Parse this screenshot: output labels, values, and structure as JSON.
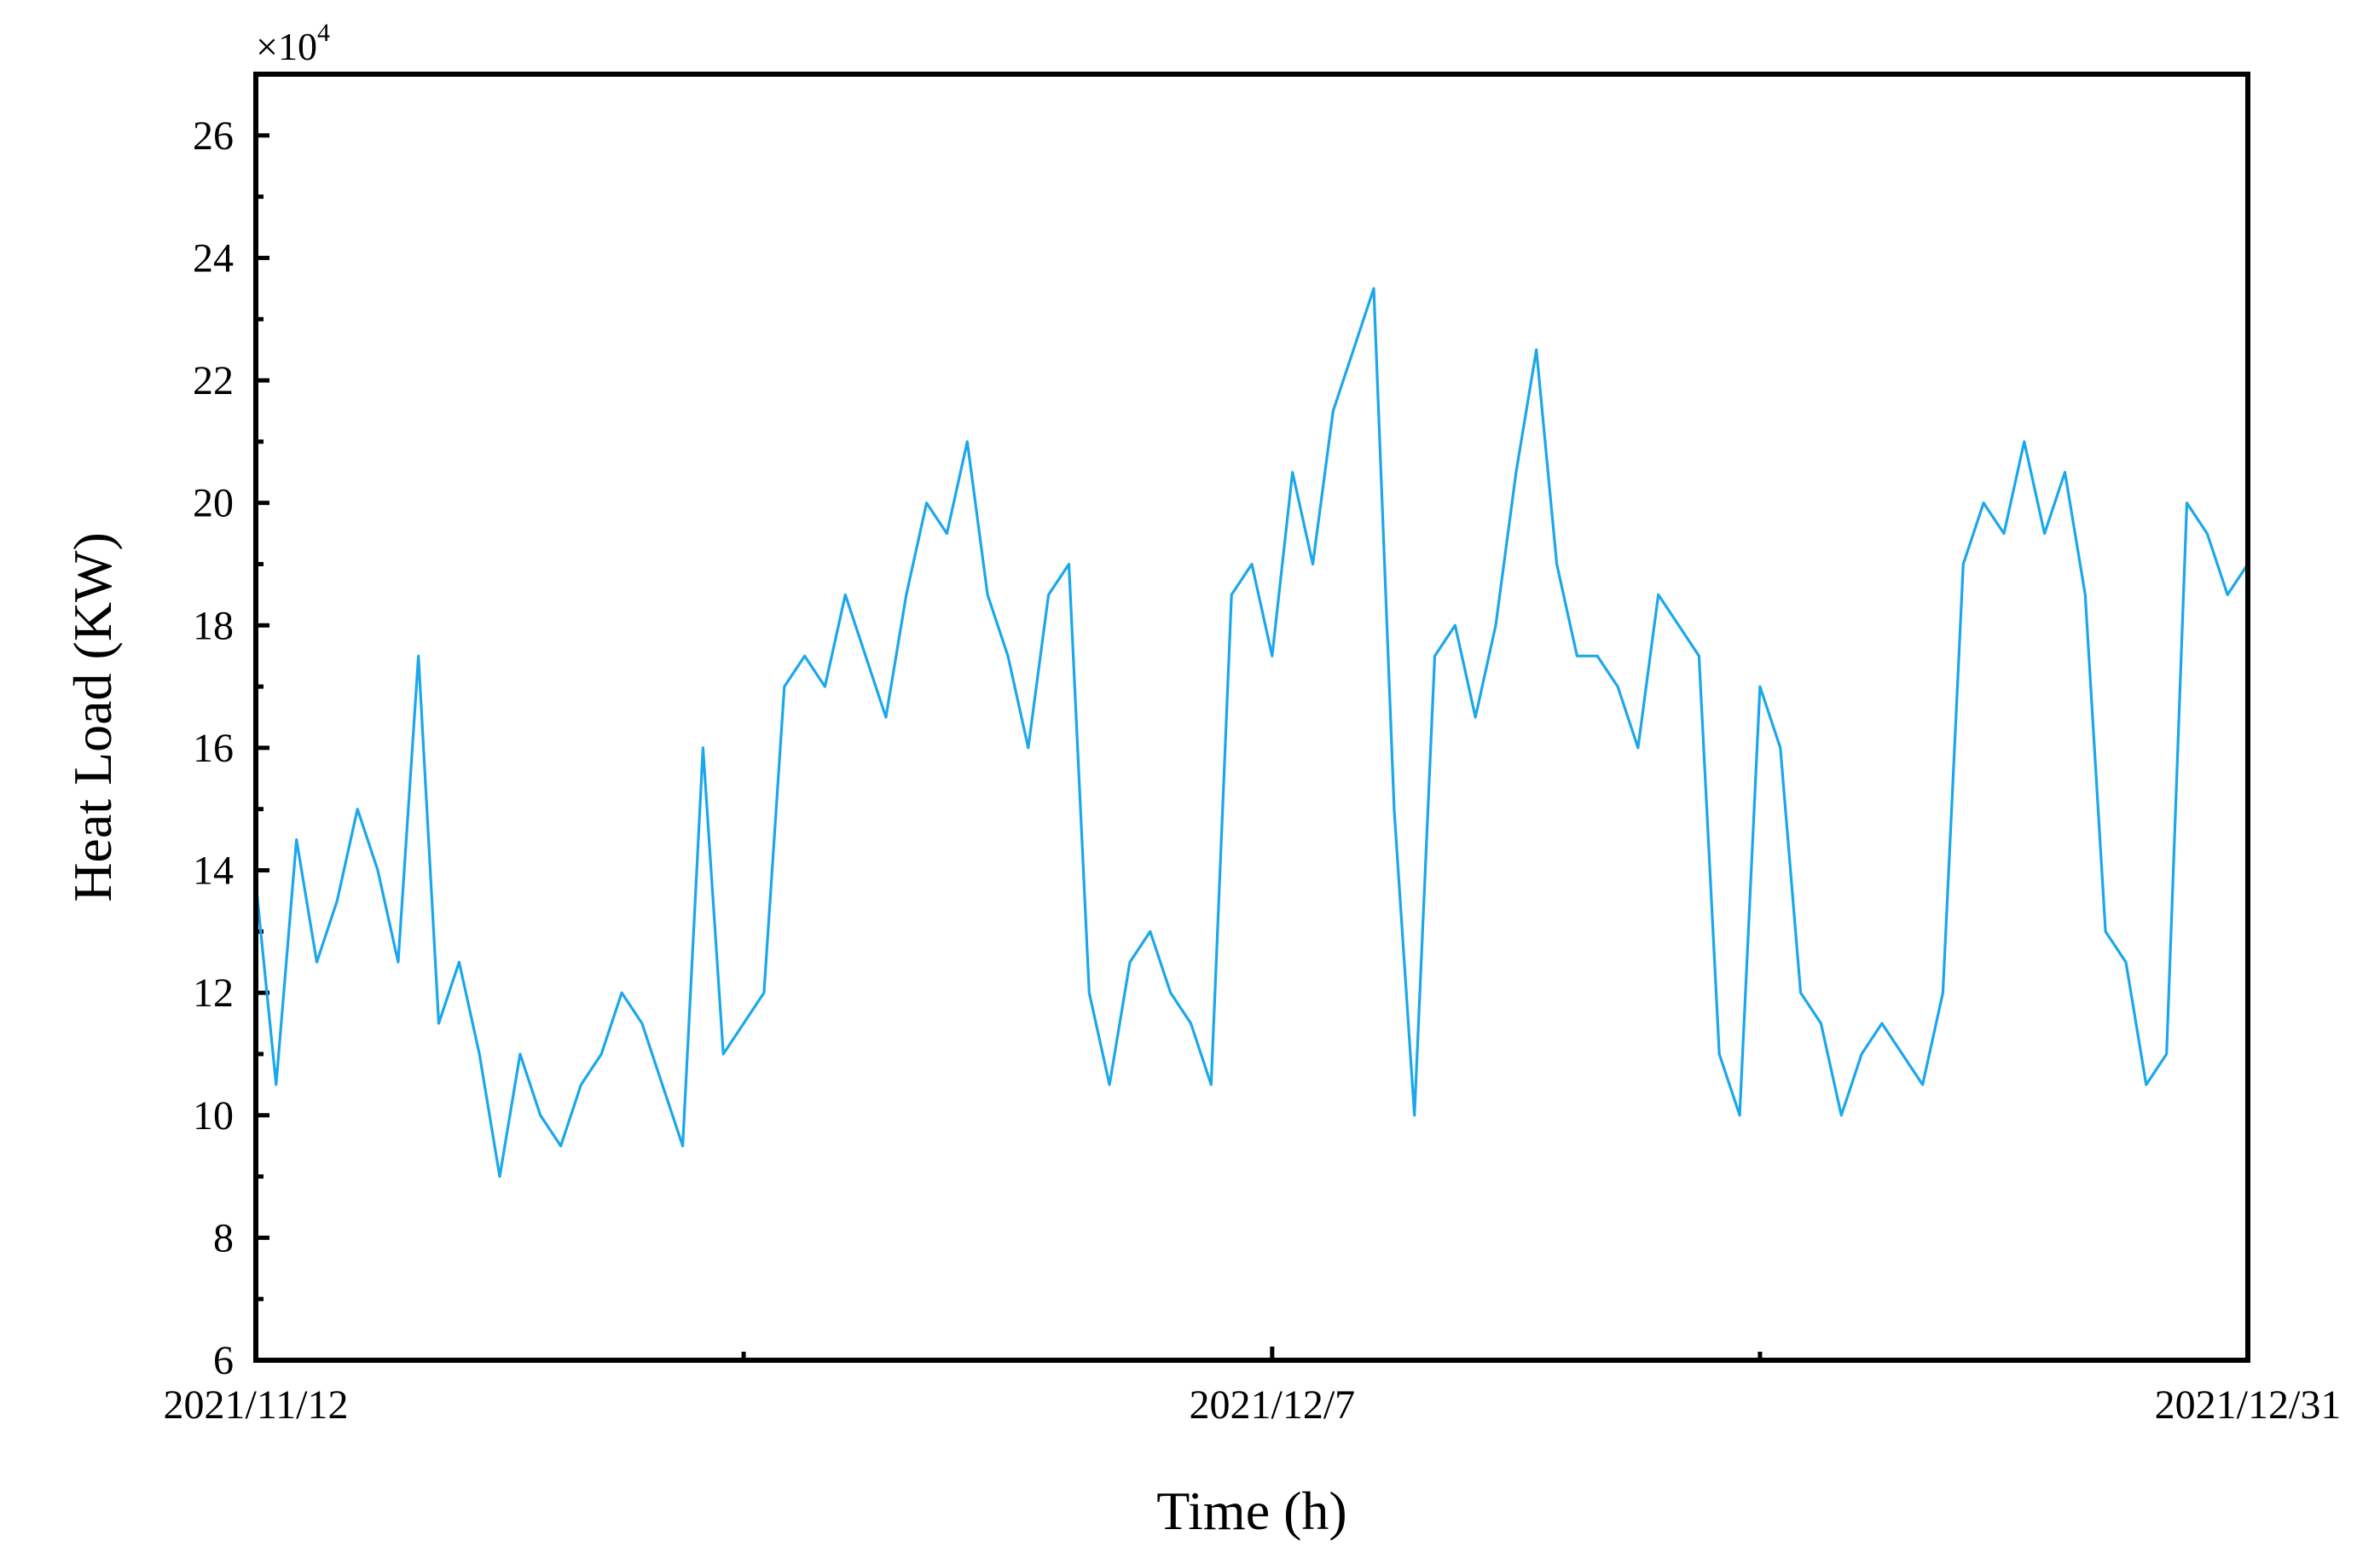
{
  "chart_data": {
    "type": "line",
    "title": "",
    "xlabel": "Time (h)",
    "ylabel": "Heat Load (KW)",
    "y_multiplier_label": "×10",
    "y_multiplier_exponent": "4",
    "y_scale_factor": 10000,
    "xlim": [
      "2021-11-12",
      "2021-12-31"
    ],
    "ylim": [
      6,
      27
    ],
    "y_major_ticks": [
      6,
      8,
      10,
      12,
      14,
      16,
      18,
      20,
      22,
      24,
      26
    ],
    "y_tick_labels": [
      "6",
      "8",
      "10",
      "12",
      "14",
      "16",
      "18",
      "20",
      "22",
      "24",
      "26"
    ],
    "x_labeled_ticks": [
      {
        "date": "2021-11-12",
        "label": "2021/11/12"
      },
      {
        "date": "2021-12-07",
        "label": "2021/12/7"
      },
      {
        "date": "2021-12-31",
        "label": "2021/12/31"
      }
    ],
    "x_minor_ticks": [
      "2021-11-24",
      "2021-12-19"
    ],
    "grid": false,
    "legend": "none",
    "line_color": "#1aa7ec",
    "series": [
      {
        "x": [
          "2021-11-12T00:00",
          "2021-11-12T12:00",
          "2021-11-13T00:00",
          "2021-11-13T12:00",
          "2021-11-14T00:00",
          "2021-11-14T12:00",
          "2021-11-15T00:00",
          "2021-11-15T12:00",
          "2021-11-16T00:00",
          "2021-11-16T12:00",
          "2021-11-17T00:00",
          "2021-11-17T12:00",
          "2021-11-18T00:00",
          "2021-11-18T12:00",
          "2021-11-19T00:00",
          "2021-11-19T12:00",
          "2021-11-20T00:00",
          "2021-11-20T12:00",
          "2021-11-21T00:00",
          "2021-11-21T12:00",
          "2021-11-22T00:00",
          "2021-11-22T12:00",
          "2021-11-23T00:00",
          "2021-11-23T12:00",
          "2021-11-24T00:00",
          "2021-11-24T12:00",
          "2021-11-25T00:00",
          "2021-11-25T12:00",
          "2021-11-26T00:00",
          "2021-11-26T12:00",
          "2021-11-27T00:00",
          "2021-11-27T12:00",
          "2021-11-28T00:00",
          "2021-11-28T12:00",
          "2021-11-29T00:00",
          "2021-11-29T12:00",
          "2021-11-30T00:00",
          "2021-11-30T12:00",
          "2021-12-01T00:00",
          "2021-12-01T12:00",
          "2021-12-02T00:00",
          "2021-12-02T12:00",
          "2021-12-03T00:00",
          "2021-12-03T12:00",
          "2021-12-04T00:00",
          "2021-12-04T12:00",
          "2021-12-05T00:00",
          "2021-12-05T12:00",
          "2021-12-06T00:00",
          "2021-12-06T12:00",
          "2021-12-07T00:00",
          "2021-12-07T12:00",
          "2021-12-08T00:00",
          "2021-12-08T12:00",
          "2021-12-09T00:00",
          "2021-12-09T12:00",
          "2021-12-10T00:00",
          "2021-12-10T12:00",
          "2021-12-11T00:00",
          "2021-12-11T12:00",
          "2021-12-12T00:00",
          "2021-12-12T12:00",
          "2021-12-13T00:00",
          "2021-12-13T12:00",
          "2021-12-14T00:00",
          "2021-12-14T12:00",
          "2021-12-15T00:00",
          "2021-12-15T12:00",
          "2021-12-16T00:00",
          "2021-12-16T12:00",
          "2021-12-17T00:00",
          "2021-12-17T12:00",
          "2021-12-18T00:00",
          "2021-12-18T12:00",
          "2021-12-19T00:00",
          "2021-12-19T12:00",
          "2021-12-20T00:00",
          "2021-12-20T12:00",
          "2021-12-21T00:00",
          "2021-12-21T12:00",
          "2021-12-22T00:00",
          "2021-12-22T12:00",
          "2021-12-23T00:00",
          "2021-12-23T12:00",
          "2021-12-24T00:00",
          "2021-12-24T12:00",
          "2021-12-25T00:00",
          "2021-12-25T12:00",
          "2021-12-26T00:00",
          "2021-12-26T12:00",
          "2021-12-27T00:00",
          "2021-12-27T12:00",
          "2021-12-28T00:00",
          "2021-12-28T12:00",
          "2021-12-29T00:00",
          "2021-12-29T12:00",
          "2021-12-30T00:00",
          "2021-12-30T12:00",
          "2021-12-31T00:00"
        ],
        "values": [
          13.8,
          10.5,
          14.5,
          12.5,
          13.5,
          15.0,
          14.0,
          12.5,
          17.5,
          11.5,
          12.5,
          11.0,
          9.0,
          11.0,
          10.0,
          9.5,
          10.5,
          11.0,
          12.0,
          11.5,
          10.5,
          9.5,
          16.0,
          11.0,
          11.5,
          12.0,
          17.0,
          17.5,
          17.0,
          18.5,
          17.5,
          16.5,
          18.5,
          20.0,
          19.5,
          21.0,
          18.5,
          17.5,
          16.0,
          18.5,
          19.0,
          12.0,
          10.5,
          12.5,
          13.0,
          12.0,
          11.5,
          10.5,
          18.5,
          19.0,
          17.5,
          20.5,
          19.0,
          21.5,
          22.5,
          23.5,
          15.0,
          10.0,
          17.5,
          18.0,
          16.5,
          18.0,
          20.5,
          22.5,
          19.0,
          17.5,
          17.5,
          17.0,
          16.0,
          18.5,
          18.0,
          17.5,
          11.0,
          10.0,
          17.0,
          16.0,
          12.0,
          11.5,
          10.0,
          11.0,
          11.5,
          11.0,
          10.5,
          12.0,
          19.0,
          20.0,
          19.5,
          21.0,
          19.5,
          20.5,
          18.5,
          13.0,
          12.5,
          10.5,
          11.0,
          20.0,
          19.5,
          18.5,
          19.0
        ]
      }
    ]
  }
}
